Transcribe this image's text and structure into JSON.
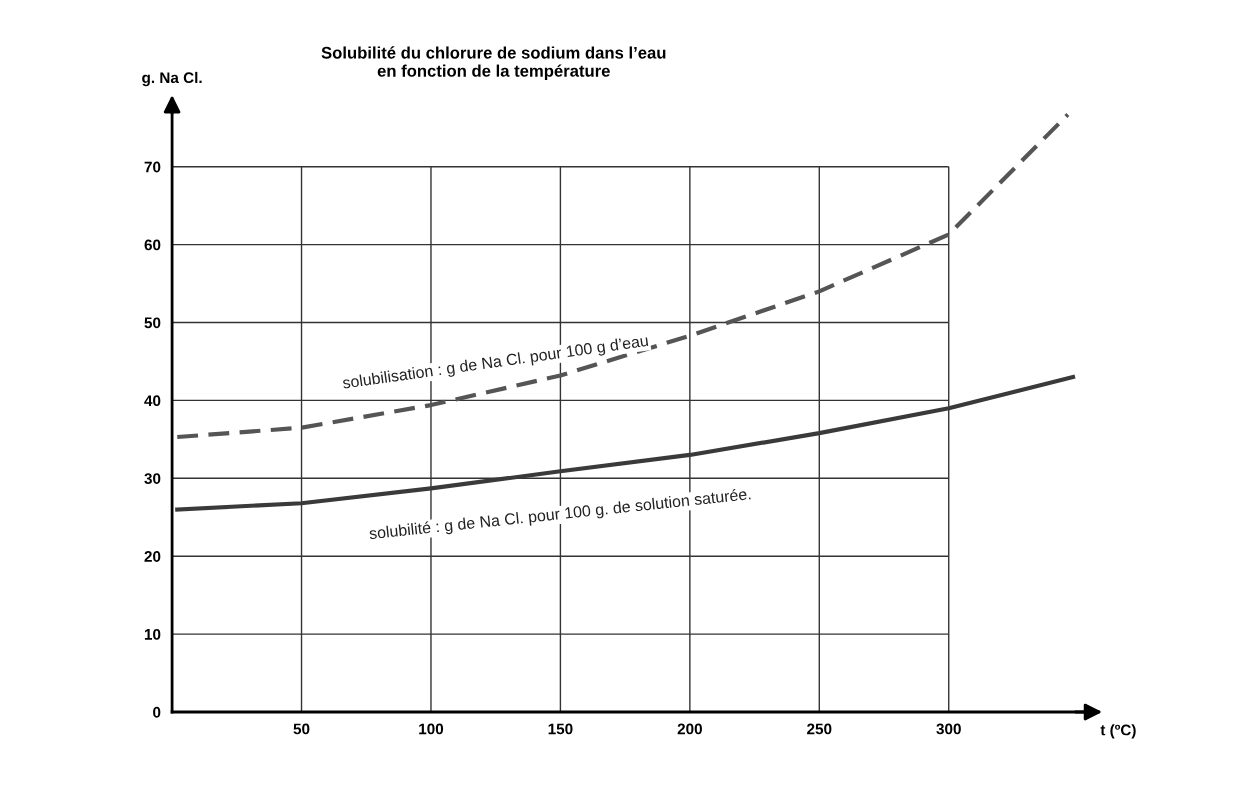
{
  "chart_data": {
    "type": "line",
    "title": "Solubilité du chlorure de sodium dans l’eau\nen fonction de la température",
    "xlabel": "t (ºC)",
    "ylabel": "g. Na Cl.",
    "series": [
      {
        "name": "solubilisation : g de Na Cl. pour 100 g d’eau",
        "color": "#555555",
        "line_style": "dashed",
        "x": [
          2,
          50,
          100,
          150,
          200,
          250,
          300,
          346
        ],
        "values": [
          35.3,
          36.5,
          39.4,
          43.2,
          48.3,
          54,
          61.3,
          76.7
        ]
      },
      {
        "name": "solubilité : g de Na Cl. pour 100 g. de solution saturée.",
        "color": "#3a3a3a",
        "line_style": "solid",
        "x": [
          2,
          50,
          100,
          150,
          200,
          250,
          300,
          348
        ],
        "values": [
          26,
          26.8,
          28.7,
          30.9,
          33,
          35.8,
          39,
          43
        ]
      }
    ],
    "xlim": [
      0,
      355
    ],
    "ylim": [
      0,
      78
    ],
    "xticks": [
      50,
      100,
      150,
      200,
      250,
      300
    ],
    "yticks": [
      0,
      10,
      20,
      30,
      40,
      50,
      60,
      70
    ],
    "grid": true,
    "marker": "none"
  }
}
